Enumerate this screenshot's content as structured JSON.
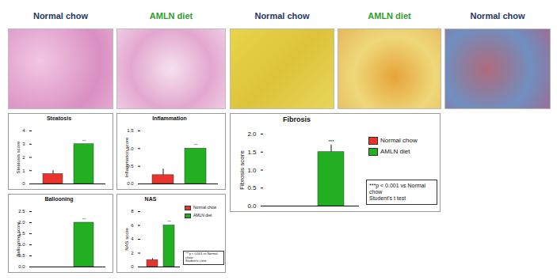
{
  "images": [
    {
      "label": "Normal chow",
      "color": "#1f3864"
    },
    {
      "label": "AMLN diet",
      "color": "#2e9e2e"
    },
    {
      "label": "Normal chow",
      "color": "#1f3864"
    },
    {
      "label": "AMLN diet",
      "color": "#2e9e2e"
    },
    {
      "label": "Normal chow",
      "color": "#1f3864"
    }
  ],
  "chart_data": [
    {
      "type": "bar",
      "title": "Steatosis",
      "y_label": "Steatosis score",
      "categories": [
        null,
        null
      ],
      "values": [
        0.75,
        3.0
      ],
      "errors": [
        0.25,
        null
      ],
      "colors": [
        "#e8342c",
        "#22b022"
      ],
      "ylim": [
        0,
        4
      ],
      "yticks": [
        0,
        1,
        2,
        3,
        4
      ],
      "annotations": [
        {
          "index": 1,
          "text": "***"
        }
      ]
    },
    {
      "type": "bar",
      "title": "Inflammation",
      "y_label": "Inflammation score",
      "categories": [
        null,
        null
      ],
      "values": [
        0.25,
        1.0
      ],
      "errors": [
        0.17,
        null
      ],
      "colors": [
        "#e8342c",
        "#22b022"
      ],
      "ylim": [
        0,
        1.5
      ],
      "yticks": [
        {
          "value": 0,
          "label": "0.0"
        },
        0.5,
        {
          "value": 1,
          "label": "1.0"
        },
        1.5
      ],
      "annotations": [
        {
          "index": 1,
          "text": "***"
        }
      ]
    },
    {
      "type": "bar",
      "title": "Ballooning",
      "y_label": "Ballooning score",
      "categories": [
        null,
        null
      ],
      "values": [
        0,
        2.0
      ],
      "errors": [
        null,
        null
      ],
      "colors": [
        "#e8342c",
        "#22b022"
      ],
      "ylim": [
        0,
        2.5
      ],
      "yticks": [
        {
          "value": 0,
          "label": "0.0"
        },
        0.5,
        {
          "value": 1,
          "label": "1.0"
        },
        1.5,
        {
          "value": 2,
          "label": "2.0"
        },
        2.5
      ],
      "annotations": [
        {
          "index": 1,
          "text": "***"
        }
      ]
    },
    {
      "type": "bar",
      "title": "NAS",
      "y_label": "NAS score",
      "categories": [
        null,
        null
      ],
      "series": [
        {
          "name": "Normal chow",
          "color": "#e8342c",
          "values": [
            1.0,
            null
          ],
          "errors": [
            0.2,
            null
          ]
        },
        {
          "name": "AMLN diet",
          "color": "#22b022",
          "values": [
            null,
            6.0
          ],
          "errors": [
            null,
            null
          ]
        }
      ],
      "ylim": [
        0,
        8
      ],
      "yticks": [
        0,
        2,
        4,
        6,
        8
      ],
      "legend": "right",
      "annotations": [
        {
          "index": 1,
          "text": "***"
        }
      ],
      "note": [
        "***p < 0.001 vs Normal",
        "chow",
        "Student's t test"
      ]
    },
    {
      "type": "bar",
      "title": "Fibrosis",
      "y_label": "Fibrosis score",
      "categories": [
        null,
        null
      ],
      "series": [
        {
          "name": "Normal chow",
          "color": "#e8342c",
          "values": [
            0,
            null
          ],
          "errors": [
            null,
            null
          ]
        },
        {
          "name": "AMLN diet",
          "color": "#22b022",
          "values": [
            null,
            1.5
          ],
          "errors": [
            null,
            0.2
          ]
        }
      ],
      "ylim": [
        0,
        2.0
      ],
      "yticks": [
        {
          "value": 0,
          "label": "0.0"
        },
        0.5,
        {
          "value": 1,
          "label": "1.0"
        },
        1.5,
        {
          "value": 2,
          "label": "2.0"
        }
      ],
      "legend": "right",
      "annotations": [
        {
          "index": 1,
          "text": "***"
        }
      ],
      "note": [
        "***p < 0.001 vs Normal",
        "chow",
        "Student's t test"
      ]
    }
  ]
}
